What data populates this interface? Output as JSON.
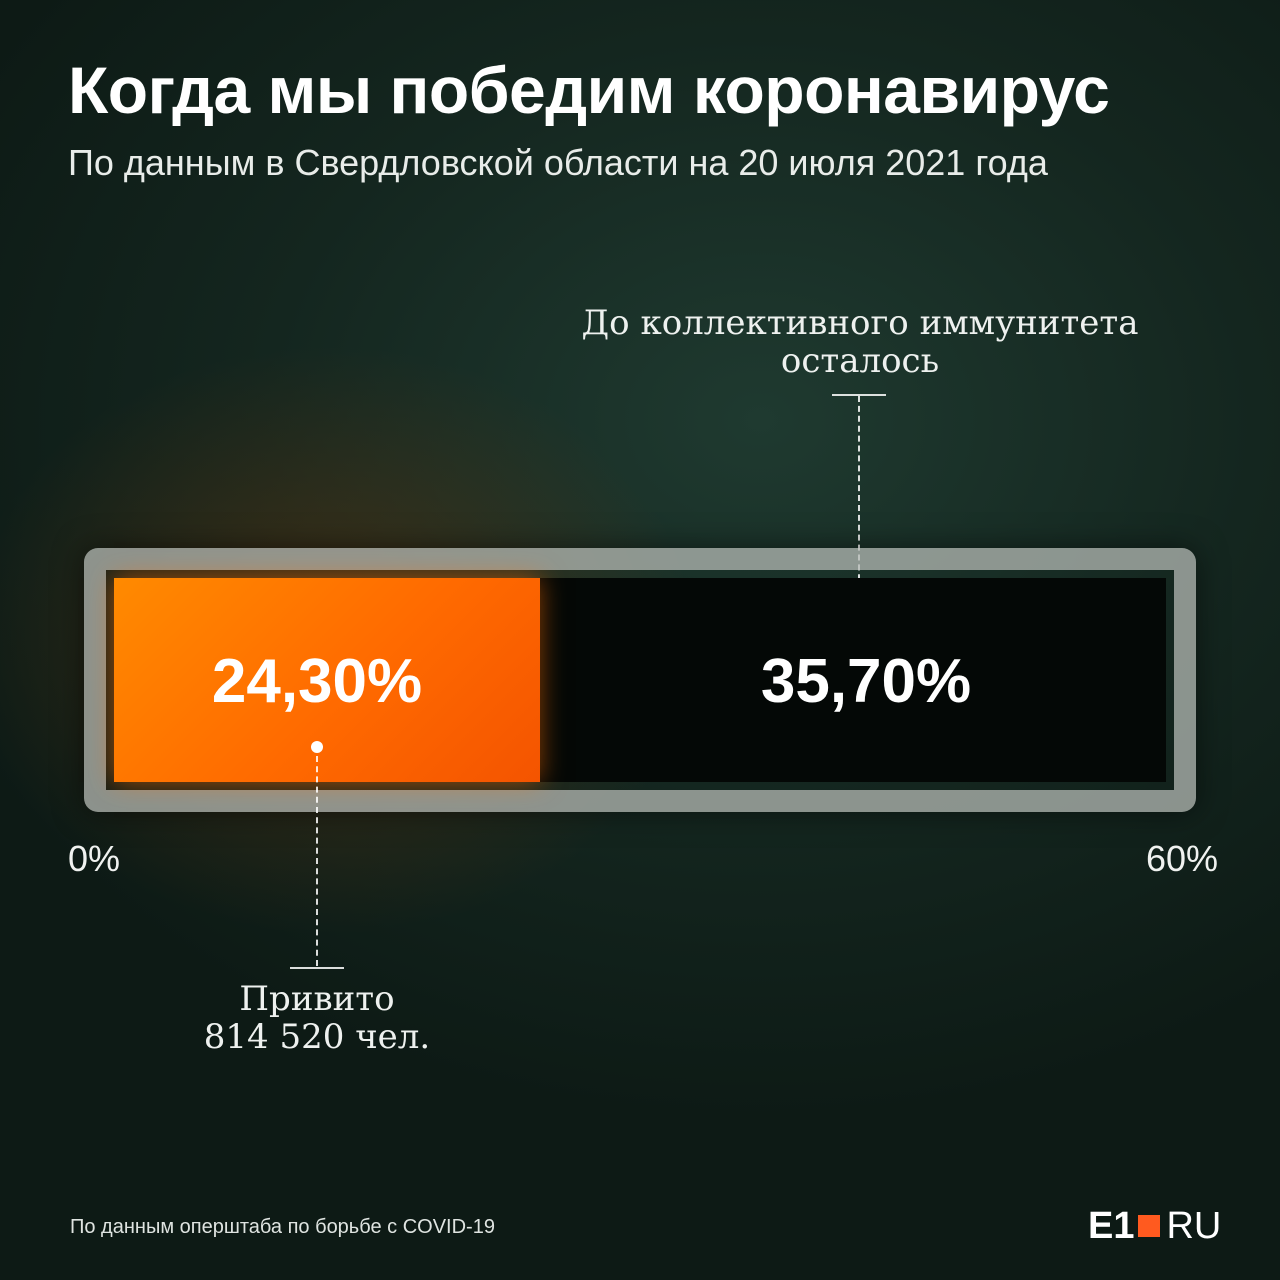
{
  "chart_data": {
    "type": "bar",
    "orientation": "horizontal",
    "title": "Когда мы победим коронавирус",
    "subtitle": "По данным в Свердловской области на 20 июля 2021 года",
    "xlim": [
      0,
      60
    ],
    "axis_min_label": "0%",
    "axis_max_label": "60%",
    "segments": [
      {
        "value": 24.3,
        "label": "24,30%",
        "annotation_line1": "Привито",
        "annotation_line2": "814 520 чел.",
        "color": "#ff7200"
      },
      {
        "value": 35.7,
        "label": "35,70%",
        "annotation_line1": "До коллективного иммунитета",
        "annotation_line2": "осталось",
        "color": "#040806"
      }
    ]
  },
  "footer": {
    "source": "По данным оперштаба по борьбе с COVID-19",
    "logo_e1": "E1",
    "logo_ru": "RU",
    "logo_square_color": "#ff5a1f"
  }
}
